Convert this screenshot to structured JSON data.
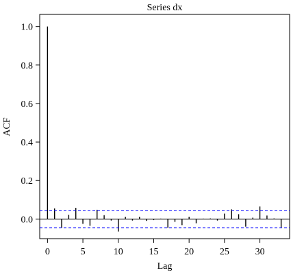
{
  "chart_data": {
    "type": "bar",
    "title": "Series dx",
    "xlabel": "Lag",
    "ylabel": "ACF",
    "xlim": [
      -1.1,
      34.2
    ],
    "ylim": [
      -0.102,
      1.063
    ],
    "x_ticks": [
      0,
      5,
      10,
      15,
      20,
      25,
      30
    ],
    "y_ticks": [
      0.0,
      0.2,
      0.4,
      0.6,
      0.8,
      1.0
    ],
    "x_tick_labels": [
      "0",
      "5",
      "10",
      "15",
      "20",
      "25",
      "30"
    ],
    "y_tick_labels": [
      "0.0",
      "0.2",
      "0.4",
      "0.6",
      "0.8",
      "1.0"
    ],
    "lags": [
      0,
      1,
      2,
      3,
      4,
      5,
      6,
      7,
      8,
      9,
      10,
      11,
      12,
      13,
      14,
      15,
      16,
      17,
      18,
      19,
      20,
      21,
      22,
      23,
      24,
      25,
      26,
      27,
      28,
      29,
      30,
      31,
      32,
      33
    ],
    "acf": [
      1.0,
      0.055,
      -0.045,
      0.022,
      0.058,
      -0.025,
      -0.035,
      0.048,
      0.02,
      -0.008,
      -0.065,
      0.012,
      -0.008,
      0.012,
      -0.01,
      -0.006,
      0.002,
      -0.045,
      -0.015,
      -0.032,
      0.012,
      -0.022,
      0.002,
      0.003,
      -0.008,
      0.028,
      0.05,
      0.025,
      -0.04,
      0.007,
      0.065,
      0.018,
      0.003,
      -0.045
    ],
    "confidence_limits": [
      0.045,
      -0.045
    ],
    "grid": false,
    "colors": {
      "bars": "#000000",
      "confidence_lines": "#0000ff",
      "axes": "#000000"
    }
  }
}
